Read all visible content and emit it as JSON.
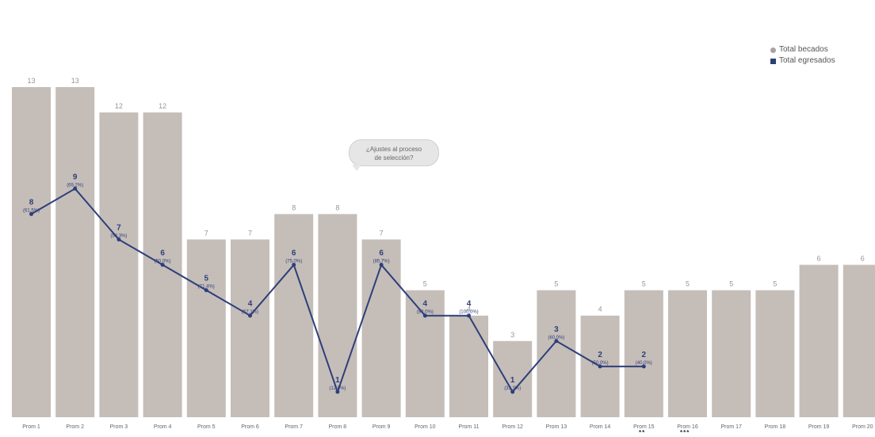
{
  "chart_data": {
    "type": "bar",
    "categories": [
      "Prom 1",
      "Prom 2",
      "Prom 3",
      "Prom 4",
      "Prom 5",
      "Prom 6",
      "Prom 7",
      "Prom 8",
      "Prom 9",
      "Prom 10",
      "Prom 11",
      "Prom 12",
      "Prom 13",
      "Prom 14",
      "Prom 15",
      "Prom 16",
      "Prom 17",
      "Prom 18",
      "Prom 19",
      "Prom 20"
    ],
    "series": [
      {
        "name": "Total becados",
        "type": "bar",
        "color": "#c5bdb8",
        "values": [
          13,
          13,
          12,
          12,
          7,
          7,
          8,
          8,
          7,
          5,
          4,
          3,
          5,
          4,
          5,
          5,
          5,
          5,
          6,
          6
        ]
      },
      {
        "name": "Total egresados",
        "type": "line",
        "color": "#2d3f7a",
        "values": [
          8,
          9,
          7,
          6,
          5,
          4,
          6,
          1,
          6,
          4,
          4,
          1,
          3,
          2,
          2,
          null,
          null,
          null,
          null,
          null
        ],
        "labels": [
          "(61,5%)",
          "(69,2%)",
          "(58,3%)",
          "(50,0%)",
          "(71,4%)",
          "(57,1%)",
          "(75,0%)",
          "(12,5%)",
          "(85,7%)",
          "(80,0%)",
          "(100,0%)",
          "(33,3%)",
          "(60,0%)",
          "(50,0%)",
          "(40,0%)",
          null,
          null,
          null,
          null,
          null
        ]
      }
    ],
    "ylim": [
      0,
      15
    ],
    "grid": false,
    "legend": "top-right",
    "annotation": {
      "line1": "¿Ajustes al proceso",
      "line2": "de selección?"
    },
    "footnotes": {
      "prom15": "**",
      "prom16": "***"
    }
  }
}
